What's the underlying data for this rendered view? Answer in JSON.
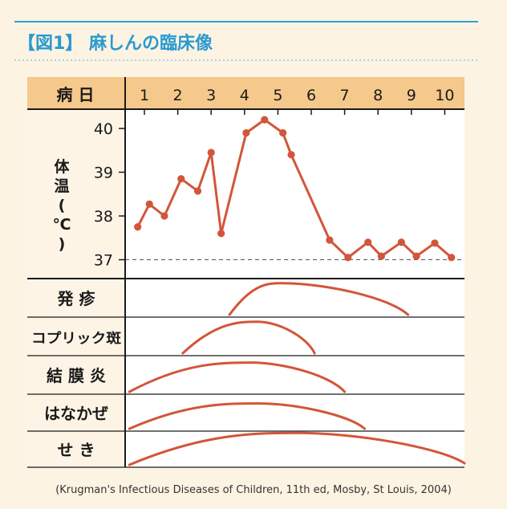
{
  "figure": {
    "title": "【図1】 麻しんの臨床像",
    "source": "(Krugman's Infectious Diseases of Children, 11th ed, Mosby, St Louis, 2004)"
  },
  "colors": {
    "accent": "#2aa3d6",
    "line": "#d2563a",
    "header_bg": "#f5c88c",
    "panel_bg": "#fef4e6",
    "chart_bg": "#ffffff",
    "grid": "#1a1a1a"
  },
  "chart_data": {
    "type": "line",
    "header_label": "病 日",
    "days": [
      "1",
      "2",
      "3",
      "4",
      "5",
      "6",
      "7",
      "8",
      "9",
      "10"
    ],
    "temperature": {
      "ylabel": "体温(℃)",
      "y_ticks": [
        "40",
        "39",
        "38",
        "37"
      ],
      "ylim": [
        36.6,
        40.3
      ],
      "reference": 37,
      "points": [
        {
          "x": 0.8,
          "y": 37.75
        },
        {
          "x": 1.15,
          "y": 38.27
        },
        {
          "x": 1.6,
          "y": 38.0
        },
        {
          "x": 2.1,
          "y": 38.85
        },
        {
          "x": 2.6,
          "y": 38.57
        },
        {
          "x": 3.0,
          "y": 39.45
        },
        {
          "x": 3.3,
          "y": 37.6
        },
        {
          "x": 4.05,
          "y": 39.9
        },
        {
          "x": 4.6,
          "y": 40.2
        },
        {
          "x": 5.15,
          "y": 39.9
        },
        {
          "x": 5.4,
          "y": 39.4
        },
        {
          "x": 6.55,
          "y": 37.45
        },
        {
          "x": 7.1,
          "y": 37.05
        },
        {
          "x": 7.7,
          "y": 37.4
        },
        {
          "x": 8.1,
          "y": 37.08
        },
        {
          "x": 8.7,
          "y": 37.4
        },
        {
          "x": 9.15,
          "y": 37.08
        },
        {
          "x": 9.7,
          "y": 37.38
        },
        {
          "x": 10.2,
          "y": 37.05
        }
      ]
    },
    "symptoms": [
      {
        "label": "発  疹",
        "start": 3.55,
        "peak": 5.1,
        "end": 8.9,
        "height": 0.88
      },
      {
        "label": "コプリック斑",
        "start": 2.15,
        "peak": 4.4,
        "end": 6.1,
        "height": 0.88
      },
      {
        "label": "結 膜 炎",
        "start": 0.55,
        "peak": 4.2,
        "end": 7.0,
        "height": 0.82
      },
      {
        "label": "はなかぜ",
        "start": 0.55,
        "peak": 4.4,
        "end": 7.6,
        "height": 0.75
      },
      {
        "label": "せ  き",
        "start": 0.55,
        "peak": 5.6,
        "end": 11.2,
        "height": 0.95
      }
    ]
  }
}
